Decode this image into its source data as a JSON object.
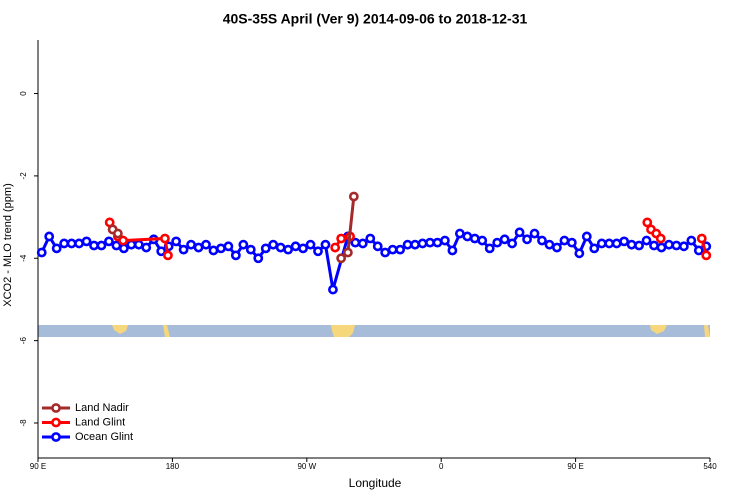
{
  "chart_data": {
    "type": "line",
    "title": "40S-35S April (Ver 9)   2014-09-06 to 2018-12-31",
    "x_label": "Longitude",
    "y_label": "XCO2 - MLO trend (ppm)",
    "xlim": [
      90,
      540
    ],
    "xticks": [
      {
        "value": 90,
        "label": "90 E"
      },
      180,
      {
        "value": 270,
        "label": "90 W"
      },
      {
        "value": 360,
        "label": "0"
      },
      {
        "value": 450,
        "label": "90 E"
      },
      540
    ],
    "ylim": [
      -8.85,
      1.3
    ],
    "yticks": [
      -8,
      -6,
      -4,
      -2,
      0
    ],
    "legend": "bottom-left",
    "series": [
      {
        "name": "Land Nadir",
        "color": "#a52a2a",
        "x": [
          140,
          143.5,
          null,
          293,
          297.5,
          301.5
        ],
        "values": [
          -3.3,
          -3.4,
          null,
          -4.0,
          -3.86,
          -2.5
        ]
      },
      {
        "name": "Land Glint",
        "color": "#ff0000",
        "x": [
          138,
          140,
          143.5,
          147,
          175,
          177,
          null,
          289,
          293,
          299,
          null,
          498,
          500.5,
          504,
          507,
          null,
          534.5,
          537.5
        ],
        "values": [
          -3.13,
          -3.3,
          -3.47,
          -3.57,
          -3.52,
          -3.93,
          null,
          -3.74,
          -3.52,
          -3.47,
          null,
          -3.13,
          -3.3,
          -3.4,
          -3.52,
          null,
          -3.52,
          -3.93
        ]
      },
      {
        "name": "Ocean Glint",
        "color": "#0000ff",
        "x": [
          92.5,
          97.5,
          102.5,
          107.5,
          112.5,
          117.5,
          122.5,
          127.5,
          132.5,
          137.5,
          142.5,
          147.5,
          152.5,
          157.5,
          162.5,
          167.5,
          172.5,
          177.5,
          182.5,
          187.5,
          192.5,
          197.5,
          202.5,
          207.5,
          212.5,
          217.5,
          222.5,
          227.5,
          232.5,
          237.5,
          242.5,
          247.5,
          252.5,
          257.5,
          262.5,
          267.5,
          272.5,
          277.5,
          282.5,
          287.5,
          297.5,
          302.5,
          307.5,
          312.5,
          317.5,
          322.5,
          327.5,
          332.5,
          337.5,
          342.5,
          347.5,
          352.5,
          357.5,
          362.5,
          367.5,
          372.5,
          377.5,
          382.5,
          387.5,
          392.5,
          397.5,
          402.5,
          407.5,
          412.5,
          417.5,
          422.5,
          427.5,
          432.5,
          437.5,
          442.5,
          447.5,
          452.5,
          457.5,
          462.5,
          467.5,
          472.5,
          477.5,
          482.5,
          487.5,
          492.5,
          497.5,
          502.5,
          507.5,
          512.5,
          517.5,
          522.5,
          527.5,
          532.5,
          537.5
        ],
        "values": [
          -3.86,
          -3.47,
          -3.76,
          -3.64,
          -3.64,
          -3.64,
          -3.59,
          -3.69,
          -3.69,
          -3.59,
          -3.69,
          -3.76,
          -3.67,
          -3.67,
          -3.74,
          -3.54,
          -3.83,
          -3.71,
          -3.59,
          -3.79,
          -3.67,
          -3.74,
          -3.67,
          -3.81,
          -3.76,
          -3.71,
          -3.93,
          -3.67,
          -3.79,
          -4.0,
          -3.76,
          -3.67,
          -3.74,
          -3.79,
          -3.71,
          -3.76,
          -3.67,
          -3.83,
          -3.67,
          -4.76,
          -3.47,
          -3.62,
          -3.64,
          -3.52,
          -3.71,
          -3.86,
          -3.79,
          -3.79,
          -3.67,
          -3.67,
          -3.64,
          -3.62,
          -3.62,
          -3.57,
          -3.81,
          -3.4,
          -3.47,
          -3.52,
          -3.57,
          -3.76,
          -3.62,
          -3.54,
          -3.64,
          -3.37,
          -3.54,
          -3.4,
          -3.57,
          -3.67,
          -3.74,
          -3.57,
          -3.62,
          -3.88,
          -3.47,
          -3.76,
          -3.64,
          -3.64,
          -3.64,
          -3.59,
          -3.67,
          -3.69,
          -3.57,
          -3.69,
          -3.74,
          -3.67,
          -3.69,
          -3.71,
          -3.57,
          -3.81,
          -3.71
        ]
      }
    ]
  }
}
